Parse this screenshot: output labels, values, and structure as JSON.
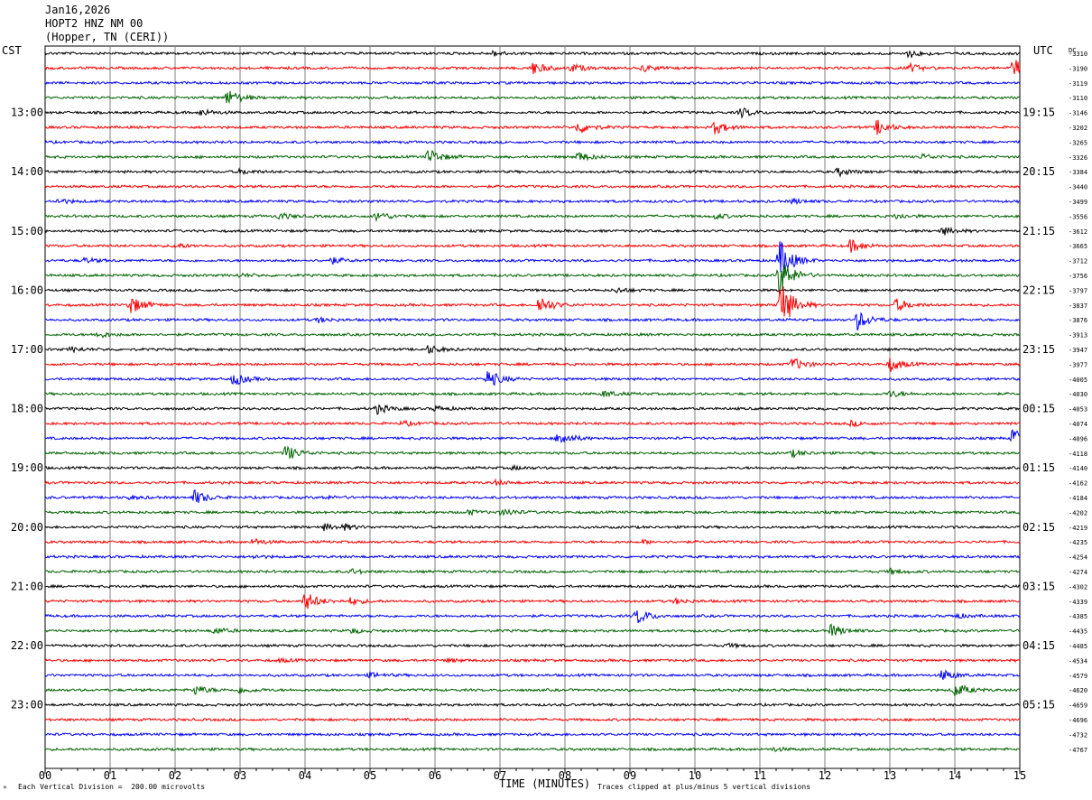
{
  "header": {
    "date": "Jan16,2026",
    "station": "HOPT2 HNZ NM 00",
    "location": "(Hopper, TN (CERI))"
  },
  "left_timezone": "CST",
  "right_timezone": "UTC",
  "dc_label": "DC",
  "footer": {
    "scale_note": "Each Vertical Division =  200.00 microvolts",
    "clip_note": "Traces clipped at plus/minus 5 vertical divisions",
    "corner_mark": "ᴹ"
  },
  "colors": [
    "#000000",
    "#ff0000",
    "#0000ff",
    "#006400"
  ],
  "chart_data": {
    "type": "line",
    "title": "HOPT2 HNZ NM 00",
    "xlabel": "TIME (MINUTES)",
    "xlim": [
      0,
      15
    ],
    "x_ticks": [
      "00",
      "01",
      "02",
      "03",
      "04",
      "05",
      "06",
      "07",
      "08",
      "09",
      "10",
      "11",
      "12",
      "13",
      "14",
      "15"
    ],
    "left_hour_labels": [
      "13:00",
      "14:00",
      "15:00",
      "16:00",
      "17:00",
      "18:00",
      "19:00",
      "20:00",
      "21:00",
      "22:00",
      "23:00"
    ],
    "right_hour_labels": [
      "19:15",
      "20:15",
      "21:15",
      "22:15",
      "23:15",
      "00:15",
      "01:15",
      "02:15",
      "03:15",
      "04:15",
      "05:15"
    ],
    "dc_offsets": [
      "-3310",
      "-3190",
      "-3119",
      "-3110",
      "-3146",
      "-3202",
      "-3265",
      "-3326",
      "-3384",
      "-3440",
      "-3499",
      "-3556",
      "-3612",
      "-3665",
      "-3712",
      "-3756",
      "-3797",
      "-3837",
      "-3876",
      "-3913",
      "-3947",
      "-3977",
      "-4005",
      "-4030",
      "-4053",
      "-4074",
      "-4096",
      "-4118",
      "-4140",
      "-4162",
      "-4184",
      "-4202",
      "-4219",
      "-4235",
      "-4254",
      "-4274",
      "-4302",
      "-4339",
      "-4385",
      "-4435",
      "-4485",
      "-4534",
      "-4579",
      "-4620",
      "-4659",
      "-4696",
      "-4732",
      "-4767"
    ],
    "trace_count": 48,
    "events": [
      [
        1,
        7.5,
        0.8
      ],
      [
        1,
        8.1,
        0.5
      ],
      [
        1,
        9.2,
        0.4
      ],
      [
        0,
        13.3,
        0.5
      ],
      [
        1,
        13.3,
        0.5
      ],
      [
        1,
        14.9,
        1.2
      ],
      [
        0,
        6.9,
        0.3
      ],
      [
        3,
        2.8,
        1.0
      ],
      [
        3,
        5.9,
        1.0
      ],
      [
        3,
        8.2,
        0.6
      ],
      [
        3,
        13.5,
        0.3
      ],
      [
        0,
        2.4,
        0.4
      ],
      [
        0,
        10.7,
        0.6
      ],
      [
        1,
        8.2,
        0.8
      ],
      [
        1,
        10.3,
        0.8
      ],
      [
        1,
        12.8,
        0.9
      ],
      [
        2,
        0.2,
        0.3
      ],
      [
        2,
        11.5,
        0.3
      ],
      [
        3,
        3.6,
        0.4
      ],
      [
        3,
        5.1,
        0.6
      ],
      [
        3,
        10.3,
        0.3
      ],
      [
        3,
        13.1,
        0.3
      ],
      [
        0,
        3.0,
        0.3
      ],
      [
        0,
        12.2,
        0.5
      ],
      [
        0,
        13.8,
        0.5
      ],
      [
        1,
        2.0,
        0.3
      ],
      [
        1,
        12.4,
        0.8
      ],
      [
        2,
        0.6,
        0.3
      ],
      [
        2,
        4.4,
        0.4
      ],
      [
        2,
        11.3,
        2.5
      ],
      [
        3,
        11.3,
        2.5
      ],
      [
        3,
        3.0,
        0.2
      ],
      [
        0,
        8.8,
        0.3
      ],
      [
        1,
        1.3,
        1.2
      ],
      [
        1,
        7.6,
        1.2
      ],
      [
        1,
        11.3,
        3.5
      ],
      [
        1,
        13.1,
        0.8
      ],
      [
        2,
        12.5,
        1.2
      ],
      [
        2,
        4.2,
        0.3
      ],
      [
        3,
        0.8,
        0.4
      ],
      [
        3,
        8.6,
        0.4
      ],
      [
        3,
        13.0,
        0.4
      ],
      [
        0,
        0.4,
        0.3
      ],
      [
        0,
        5.9,
        0.5
      ],
      [
        1,
        11.5,
        0.8
      ],
      [
        1,
        13.0,
        0.9
      ],
      [
        2,
        2.9,
        0.8
      ],
      [
        2,
        6.8,
        1.2
      ],
      [
        2,
        7.9,
        1.0
      ],
      [
        2,
        14.9,
        1.6
      ],
      [
        3,
        3.7,
        1.0
      ],
      [
        3,
        11.5,
        0.4
      ],
      [
        0,
        5.1,
        0.6
      ],
      [
        0,
        6.0,
        0.3
      ],
      [
        1,
        5.5,
        0.3
      ],
      [
        1,
        12.4,
        0.3
      ],
      [
        2,
        1.3,
        0.2
      ],
      [
        3,
        7.0,
        0.2
      ],
      [
        0,
        7.2,
        0.2
      ],
      [
        1,
        6.9,
        0.3
      ],
      [
        2,
        2.3,
        0.9
      ],
      [
        2,
        4.3,
        0.2
      ],
      [
        3,
        6.5,
        0.3
      ],
      [
        3,
        7.1,
        0.3
      ],
      [
        0,
        4.3,
        0.4
      ],
      [
        1,
        3.2,
        0.2
      ],
      [
        1,
        9.2,
        0.2
      ],
      [
        2,
        3.2,
        0.2
      ],
      [
        3,
        4.7,
        0.3
      ],
      [
        3,
        13.0,
        0.3
      ],
      [
        0,
        4.6,
        0.3
      ],
      [
        1,
        3.2,
        0.2
      ],
      [
        2,
        9.1,
        1.0
      ],
      [
        2,
        14.0,
        0.3
      ],
      [
        3,
        2.6,
        0.4
      ],
      [
        3,
        4.7,
        0.3
      ],
      [
        3,
        12.1,
        0.8
      ],
      [
        1,
        4.0,
        1.2
      ],
      [
        1,
        4.7,
        0.4
      ],
      [
        1,
        9.7,
        0.3
      ],
      [
        2,
        5.0,
        0.3
      ],
      [
        2,
        13.8,
        0.7
      ],
      [
        3,
        2.3,
        0.6
      ],
      [
        3,
        3.0,
        0.4
      ],
      [
        3,
        14.0,
        0.9
      ],
      [
        0,
        10.5,
        0.2
      ],
      [
        1,
        3.6,
        0.2
      ],
      [
        1,
        6.2,
        0.2
      ],
      [
        3,
        11.2,
        0.2
      ]
    ]
  }
}
